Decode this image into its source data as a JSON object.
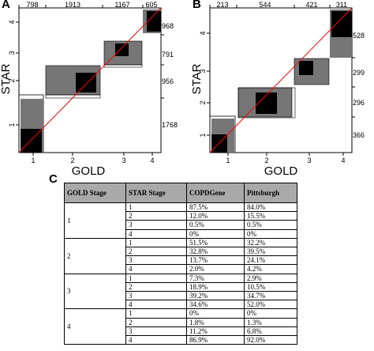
{
  "panels": [
    {
      "id": "A",
      "letter": "A",
      "xlabel": "GOLD",
      "ylabel": "STAR",
      "top_counts": [
        "798",
        "1913",
        "1167",
        "605"
      ],
      "right_counts": [
        "968",
        "791",
        "956",
        "1768"
      ],
      "x_ticks": [
        "1",
        "2",
        "3",
        "4"
      ],
      "y_ticks": [
        "1",
        "2",
        "3",
        "4"
      ]
    },
    {
      "id": "B",
      "letter": "B",
      "xlabel": "GOLD",
      "ylabel": "STAR",
      "top_counts": [
        "213",
        "544",
        "421",
        "311"
      ],
      "right_counts": [
        "528",
        "299",
        "296",
        "366"
      ],
      "x_ticks": [
        "1",
        "2",
        "3",
        "4"
      ],
      "y_ticks": [
        "1",
        "2",
        "3",
        "4"
      ]
    }
  ],
  "table": {
    "letter": "C",
    "headers": [
      "GOLD Stage",
      "STAR Stage",
      "COPDGene",
      "Pittsburgh"
    ],
    "groups": [
      {
        "gold": "1",
        "rows": [
          [
            "1",
            "87.5%",
            "84.0%"
          ],
          [
            "2",
            "12.0%",
            "15.5%"
          ],
          [
            "3",
            "0.5%",
            "0.5%"
          ],
          [
            "4",
            "0%",
            "0%"
          ]
        ]
      },
      {
        "gold": "2",
        "rows": [
          [
            "1",
            "51.5%",
            "32.2%"
          ],
          [
            "2",
            "32.8%",
            "39.5%"
          ],
          [
            "3",
            "13.7%",
            "24.1%"
          ],
          [
            "4",
            "2.0%",
            "4.2%"
          ]
        ]
      },
      {
        "gold": "3",
        "rows": [
          [
            "1",
            "7.3%",
            "2.9%"
          ],
          [
            "2",
            "18.9%",
            "10.5%"
          ],
          [
            "3",
            "39.2%",
            "34.7%"
          ],
          [
            "4",
            "34.6%",
            "52.0%"
          ]
        ]
      },
      {
        "gold": "4",
        "rows": [
          [
            "1",
            "0%",
            "0%"
          ],
          [
            "2",
            "1.8%",
            "1.3%"
          ],
          [
            "3",
            "11.2%",
            "6.8%"
          ],
          [
            "4",
            "86.9%",
            "92.0%"
          ]
        ]
      }
    ]
  }
}
